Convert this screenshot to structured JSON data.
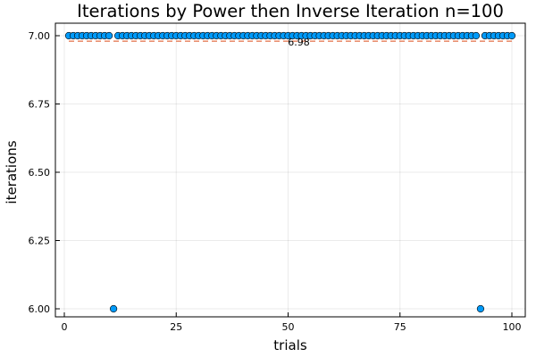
{
  "chart_data": {
    "type": "scatter",
    "title": "Iterations by Power then Inverse Iteration  n=100",
    "xlabel": "trials",
    "ylabel": "iterations",
    "xlim": [
      0,
      100
    ],
    "ylim": [
      6.0,
      7.0
    ],
    "grid": true,
    "legend": "none",
    "xticks": [
      0,
      25,
      50,
      75,
      100
    ],
    "xtick_labels": [
      "0",
      "25",
      "50",
      "75",
      "100"
    ],
    "yticks": [
      6.0,
      6.25,
      6.5,
      6.75,
      7.0
    ],
    "ytick_labels": [
      "6.00",
      "6.25",
      "6.50",
      "6.75",
      "7.00"
    ],
    "series": [
      {
        "color": "#009af9",
        "x": [
          1,
          2,
          3,
          4,
          5,
          6,
          7,
          8,
          9,
          10,
          11,
          12,
          13,
          14,
          15,
          16,
          17,
          18,
          19,
          20,
          21,
          22,
          23,
          24,
          25,
          26,
          27,
          28,
          29,
          30,
          31,
          32,
          33,
          34,
          35,
          36,
          37,
          38,
          39,
          40,
          41,
          42,
          43,
          44,
          45,
          46,
          47,
          48,
          49,
          50,
          51,
          52,
          53,
          54,
          55,
          56,
          57,
          58,
          59,
          60,
          61,
          62,
          63,
          64,
          65,
          66,
          67,
          68,
          69,
          70,
          71,
          72,
          73,
          74,
          75,
          76,
          77,
          78,
          79,
          80,
          81,
          82,
          83,
          84,
          85,
          86,
          87,
          88,
          89,
          90,
          91,
          92,
          93,
          94,
          95,
          96,
          97,
          98,
          99,
          100
        ],
        "y": [
          7,
          7,
          7,
          7,
          7,
          7,
          7,
          7,
          7,
          7,
          6,
          7,
          7,
          7,
          7,
          7,
          7,
          7,
          7,
          7,
          7,
          7,
          7,
          7,
          7,
          7,
          7,
          7,
          7,
          7,
          7,
          7,
          7,
          7,
          7,
          7,
          7,
          7,
          7,
          7,
          7,
          7,
          7,
          7,
          7,
          7,
          7,
          7,
          7,
          7,
          7,
          7,
          7,
          7,
          7,
          7,
          7,
          7,
          7,
          7,
          7,
          7,
          7,
          7,
          7,
          7,
          7,
          7,
          7,
          7,
          7,
          7,
          7,
          7,
          7,
          7,
          7,
          7,
          7,
          7,
          7,
          7,
          7,
          7,
          7,
          7,
          7,
          7,
          7,
          7,
          7,
          7,
          6,
          7,
          7,
          7,
          7,
          7,
          7,
          7
        ]
      }
    ],
    "mean_line": {
      "value": 6.98,
      "label": "6.98",
      "x_range": [
        1,
        100
      ],
      "label_x": 50,
      "color": "#e26f46"
    }
  }
}
